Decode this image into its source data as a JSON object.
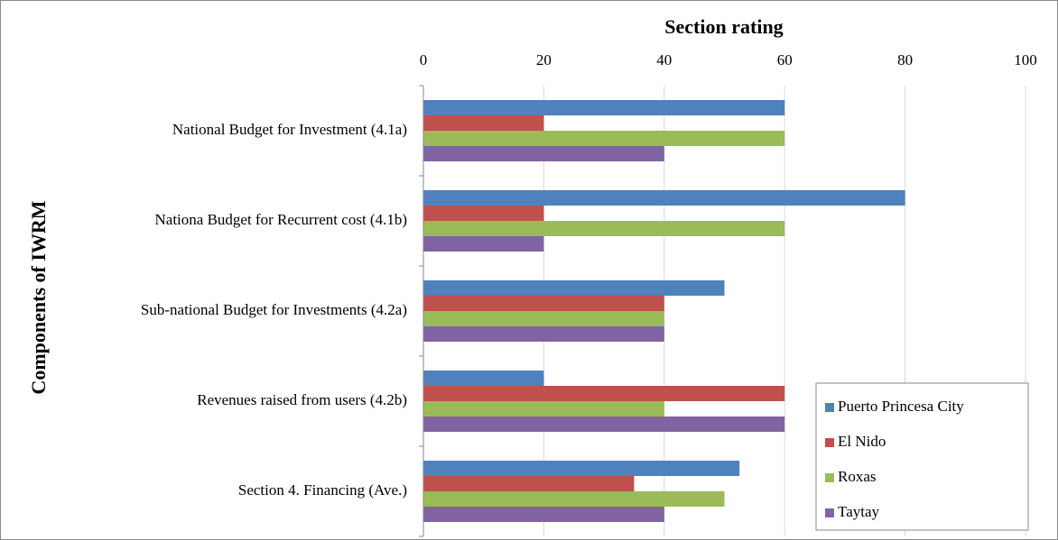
{
  "chart_data": {
    "type": "bar",
    "orientation": "horizontal",
    "title": "Section rating",
    "y_label": "Components of IWRM",
    "categories": [
      "National Budget for Investment (4.1a)",
      "Nationa Budget for Recurrent cost (4.1b)",
      "Sub-national Budget for Investments (4.2a)",
      "Revenues raised from users (4.2b)",
      "Section 4. Financing (Ave.)"
    ],
    "series": [
      {
        "name": "Puerto Princesa City",
        "color": "#4f81bd",
        "values": [
          60,
          80,
          50,
          20,
          52.5
        ]
      },
      {
        "name": "El Nido",
        "color": "#c0504d",
        "values": [
          20,
          20,
          40,
          60,
          35
        ]
      },
      {
        "name": "Roxas",
        "color": "#9bbb59",
        "values": [
          60,
          60,
          40,
          40,
          50
        ]
      },
      {
        "name": "Taytay",
        "color": "#8064a2",
        "values": [
          40,
          20,
          40,
          60,
          40
        ]
      }
    ],
    "xlim": [
      0,
      100
    ],
    "xticks": [
      0,
      20,
      40,
      60,
      80,
      100
    ],
    "grid": true,
    "legend": "lower right"
  }
}
